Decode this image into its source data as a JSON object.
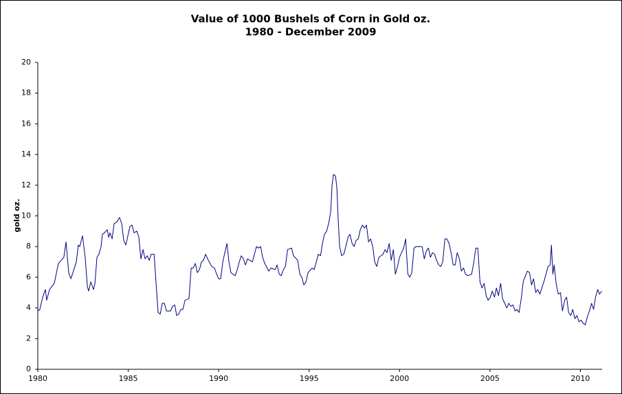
{
  "chart_data": {
    "type": "line",
    "title": "Value of 1000 Bushels of Corn in Gold oz.",
    "subtitle": "1980 - December 2009",
    "y_label": "gold oz.",
    "color": "#000080",
    "xlim": [
      1980,
      2011.2
    ],
    "xticks": [
      1980,
      1985,
      1990,
      1995,
      2000,
      2005,
      2010
    ],
    "ylim": [
      0,
      20
    ],
    "yticks": [
      0,
      2,
      4,
      6,
      8,
      10,
      12,
      14,
      16,
      18,
      20
    ],
    "grid": false,
    "x": [
      1980.0,
      1980.11,
      1980.27,
      1980.42,
      1980.49,
      1980.65,
      1980.91,
      1981.14,
      1981.44,
      1981.56,
      1981.71,
      1981.83,
      1981.94,
      1982.13,
      1982.24,
      1982.32,
      1982.47,
      1982.62,
      1982.74,
      1982.81,
      1982.93,
      1983.08,
      1983.16,
      1983.27,
      1983.38,
      1983.5,
      1983.57,
      1983.69,
      1983.84,
      1983.92,
      1983.99,
      1984.11,
      1984.22,
      1984.37,
      1984.52,
      1984.64,
      1984.75,
      1984.87,
      1984.98,
      1985.09,
      1985.21,
      1985.32,
      1985.48,
      1985.59,
      1985.7,
      1985.82,
      1985.93,
      1986.05,
      1986.16,
      1986.27,
      1986.43,
      1986.54,
      1986.65,
      1986.77,
      1986.88,
      1987.0,
      1987.11,
      1987.34,
      1987.45,
      1987.57,
      1987.68,
      1987.79,
      1987.91,
      1988.02,
      1988.14,
      1988.36,
      1988.48,
      1988.59,
      1988.71,
      1988.82,
      1988.94,
      1989.05,
      1989.16,
      1989.28,
      1989.39,
      1989.62,
      1989.77,
      1989.89,
      1990.0,
      1990.11,
      1990.23,
      1990.34,
      1990.46,
      1990.57,
      1990.68,
      1990.91,
      1991.03,
      1991.14,
      1991.25,
      1991.37,
      1991.48,
      1991.6,
      1991.86,
      1991.98,
      1992.09,
      1992.2,
      1992.32,
      1992.43,
      1992.55,
      1992.77,
      1992.89,
      1993.12,
      1993.23,
      1993.35,
      1993.46,
      1993.58,
      1993.69,
      1993.81,
      1994.03,
      1994.14,
      1994.37,
      1994.49,
      1994.6,
      1994.71,
      1994.83,
      1994.94,
      1995.17,
      1995.28,
      1995.4,
      1995.51,
      1995.63,
      1995.74,
      1995.85,
      1995.97,
      1996.08,
      1996.2,
      1996.27,
      1996.35,
      1996.46,
      1996.54,
      1996.61,
      1996.69,
      1996.8,
      1996.92,
      1997.03,
      1997.15,
      1997.26,
      1997.38,
      1997.49,
      1997.6,
      1997.72,
      1997.83,
      1997.95,
      1998.06,
      1998.17,
      1998.29,
      1998.4,
      1998.52,
      1998.63,
      1998.74,
      1998.86,
      1999.09,
      1999.2,
      1999.31,
      1999.43,
      1999.54,
      1999.66,
      1999.77,
      1999.89,
      2000.0,
      2000.11,
      2000.23,
      2000.34,
      2000.46,
      2000.57,
      2000.68,
      2000.8,
      2000.91,
      2001.25,
      2001.37,
      2001.48,
      2001.6,
      2001.71,
      2001.82,
      2001.94,
      2002.05,
      2002.17,
      2002.28,
      2002.39,
      2002.51,
      2002.62,
      2002.74,
      2002.85,
      2002.97,
      2003.08,
      2003.19,
      2003.31,
      2003.42,
      2003.54,
      2003.65,
      2003.77,
      2003.99,
      2004.11,
      2004.22,
      2004.33,
      2004.45,
      2004.56,
      2004.68,
      2004.79,
      2004.9,
      2005.02,
      2005.13,
      2005.25,
      2005.36,
      2005.47,
      2005.59,
      2005.7,
      2005.82,
      2005.93,
      2006.04,
      2006.16,
      2006.27,
      2006.39,
      2006.5,
      2006.61,
      2006.73,
      2006.84,
      2006.96,
      2007.07,
      2007.19,
      2007.3,
      2007.41,
      2007.53,
      2007.64,
      2007.76,
      2007.87,
      2007.98,
      2008.1,
      2008.21,
      2008.33,
      2008.4,
      2008.48,
      2008.55,
      2008.67,
      2008.78,
      2008.9,
      2009.01,
      2009.13,
      2009.24,
      2009.35,
      2009.47,
      2009.58,
      2009.7,
      2009.81,
      2009.92,
      2010.04,
      2010.15,
      2010.27,
      2010.38,
      2010.5,
      2010.62,
      2010.73,
      2010.84,
      2010.96,
      2011.06,
      2011.18
    ],
    "values": [
      3.8,
      3.9,
      4.7,
      5.2,
      4.5,
      5.2,
      5.6,
      6.9,
      7.3,
      8.3,
      6.3,
      5.9,
      6.3,
      7.0,
      8.1,
      8.0,
      8.7,
      7.3,
      5.4,
      5.1,
      5.7,
      5.2,
      5.6,
      7.3,
      7.5,
      8.0,
      8.8,
      8.9,
      9.1,
      8.6,
      8.9,
      8.5,
      9.5,
      9.6,
      9.9,
      9.5,
      8.4,
      8.1,
      8.7,
      9.3,
      9.4,
      8.9,
      9.0,
      8.6,
      7.2,
      7.8,
      7.2,
      7.4,
      7.1,
      7.5,
      7.5,
      5.6,
      3.7,
      3.6,
      4.3,
      4.3,
      3.8,
      3.8,
      4.1,
      4.2,
      3.5,
      3.6,
      3.9,
      3.9,
      4.5,
      4.6,
      6.6,
      6.6,
      6.9,
      6.3,
      6.5,
      7.0,
      7.1,
      7.5,
      7.2,
      6.7,
      6.6,
      6.2,
      5.9,
      5.9,
      7.0,
      7.6,
      8.2,
      7.0,
      6.3,
      6.1,
      6.5,
      7.0,
      7.4,
      7.2,
      6.8,
      7.2,
      7.0,
      7.5,
      8.0,
      7.9,
      8.0,
      7.3,
      6.9,
      6.4,
      6.6,
      6.5,
      6.8,
      6.2,
      6.1,
      6.5,
      6.7,
      7.8,
      7.9,
      7.4,
      7.1,
      6.2,
      6.0,
      5.5,
      5.7,
      6.3,
      6.6,
      6.5,
      7.0,
      7.5,
      7.4,
      8.2,
      8.8,
      9.0,
      9.5,
      10.3,
      12.0,
      12.7,
      12.6,
      11.8,
      9.7,
      8.0,
      7.4,
      7.5,
      8.0,
      8.6,
      8.8,
      8.2,
      8.0,
      8.4,
      8.5,
      9.1,
      9.4,
      9.2,
      9.4,
      8.3,
      8.5,
      8.0,
      7.0,
      6.7,
      7.3,
      7.5,
      7.8,
      7.6,
      8.2,
      7.1,
      7.8,
      6.2,
      6.7,
      7.3,
      7.6,
      7.9,
      8.5,
      6.2,
      6.0,
      6.3,
      7.9,
      8.0,
      8.0,
      7.2,
      7.7,
      7.9,
      7.3,
      7.6,
      7.5,
      7.1,
      6.8,
      6.7,
      7.0,
      8.5,
      8.5,
      8.2,
      7.6,
      6.8,
      6.8,
      7.6,
      7.2,
      6.4,
      6.6,
      6.2,
      6.1,
      6.2,
      7.0,
      7.9,
      7.9,
      5.7,
      5.3,
      5.6,
      4.8,
      4.5,
      4.7,
      5.1,
      4.7,
      5.3,
      4.8,
      5.6,
      4.6,
      4.3,
      4.0,
      4.3,
      4.1,
      4.2,
      3.8,
      3.9,
      3.7,
      4.6,
      5.7,
      6.1,
      6.4,
      6.3,
      5.5,
      5.9,
      5.0,
      5.2,
      4.9,
      5.3,
      5.7,
      6.2,
      6.7,
      6.8,
      8.1,
      6.2,
      6.8,
      5.5,
      4.9,
      5.0,
      3.8,
      4.5,
      4.7,
      3.7,
      3.5,
      3.9,
      3.3,
      3.5,
      3.1,
      3.2,
      3.0,
      2.9,
      3.4,
      3.8,
      4.3,
      3.9,
      4.7,
      5.2,
      4.9,
      5.1
    ]
  }
}
